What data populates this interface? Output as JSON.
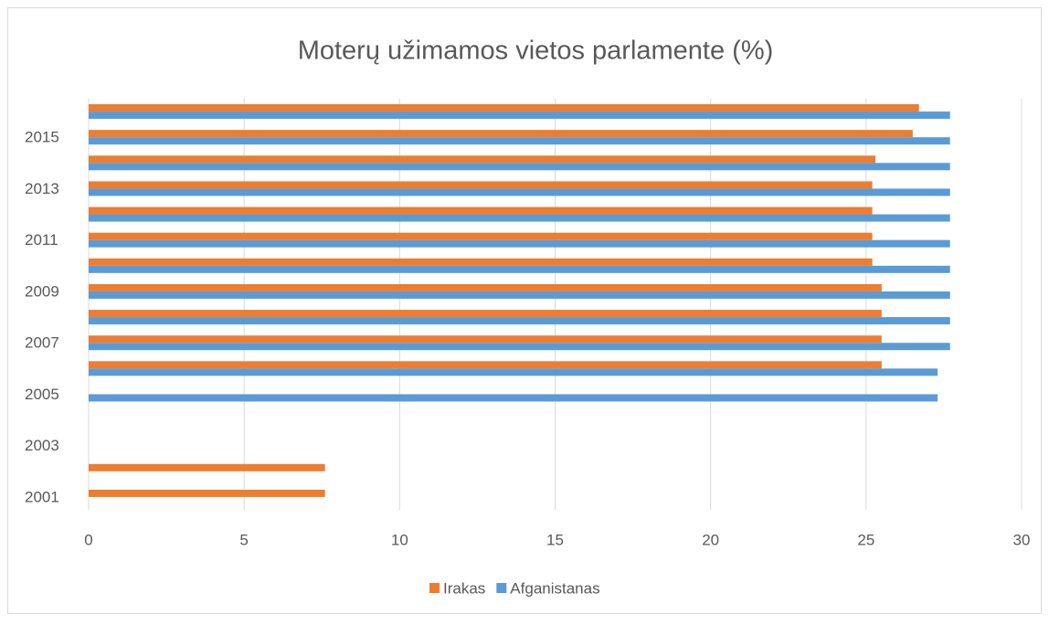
{
  "chart_data": {
    "type": "hbar",
    "title": "Moterų užimamos vietos parlamente (%)",
    "categories": [
      "2001",
      null,
      "2003",
      null,
      "2005",
      null,
      "2007",
      null,
      "2009",
      null,
      "2011",
      null,
      "2013",
      null,
      "2015",
      null
    ],
    "series": [
      {
        "name": "Irakas",
        "color": "#ed7d31",
        "values": [
          7.6,
          7.6,
          null,
          null,
          null,
          25.5,
          25.5,
          25.5,
          25.5,
          25.2,
          25.2,
          25.2,
          25.2,
          25.3,
          26.5,
          26.7
        ]
      },
      {
        "name": "Afganistanas",
        "color": "#5b9bd5",
        "values": [
          null,
          null,
          null,
          null,
          27.3,
          27.3,
          27.7,
          27.7,
          27.7,
          27.7,
          27.7,
          27.7,
          27.7,
          27.7,
          27.7,
          27.7
        ]
      }
    ],
    "xlim": [
      0,
      30
    ],
    "xticks": [
      0,
      5,
      10,
      15,
      20,
      25,
      30
    ],
    "grid": true,
    "legend": "bottom"
  }
}
